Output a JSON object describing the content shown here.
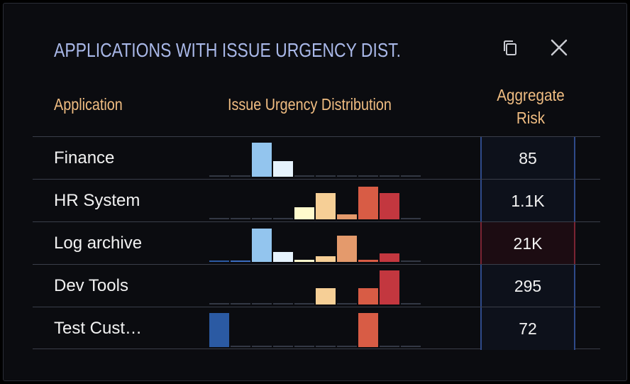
{
  "title": "APPLICATIONS WITH ISSUE URGENCY DIST.",
  "icons": {
    "copy": "copy-icon",
    "close": "close-icon"
  },
  "headers": {
    "application": "Application",
    "distribution": "Issue Urgency Distribution",
    "risk_line1": "Aggregate",
    "risk_line2": "Risk"
  },
  "urgency_colors": [
    "#2b5aa3",
    "#3b6cc0",
    "#93c5ee",
    "#e6f3fd",
    "#fffacd",
    "#f6cf96",
    "#e49a6c",
    "#d85c45",
    "#c3373f",
    "#333844"
  ],
  "rows": [
    {
      "app": "Finance",
      "risk": "85",
      "level": "normal",
      "dist": [
        0,
        0,
        48,
        22,
        0,
        0,
        0,
        0,
        0,
        0
      ]
    },
    {
      "app": "HR System",
      "risk": "1.1K",
      "level": "normal",
      "dist": [
        0,
        0,
        0,
        0,
        17,
        37,
        7,
        46,
        37,
        0
      ]
    },
    {
      "app": "Log archive",
      "risk": "21K",
      "level": "high",
      "dist": [
        2,
        2,
        47,
        14,
        3,
        8,
        37,
        3,
        12,
        0
      ]
    },
    {
      "app": "Dev Tools",
      "risk": "295",
      "level": "normal",
      "dist": [
        0,
        0,
        0,
        0,
        0,
        23,
        0,
        23,
        48,
        0
      ]
    },
    {
      "app": "Test Cust…",
      "risk": "72",
      "level": "normal",
      "dist": [
        48,
        0,
        0,
        0,
        0,
        0,
        0,
        48,
        0,
        0
      ]
    }
  ]
}
